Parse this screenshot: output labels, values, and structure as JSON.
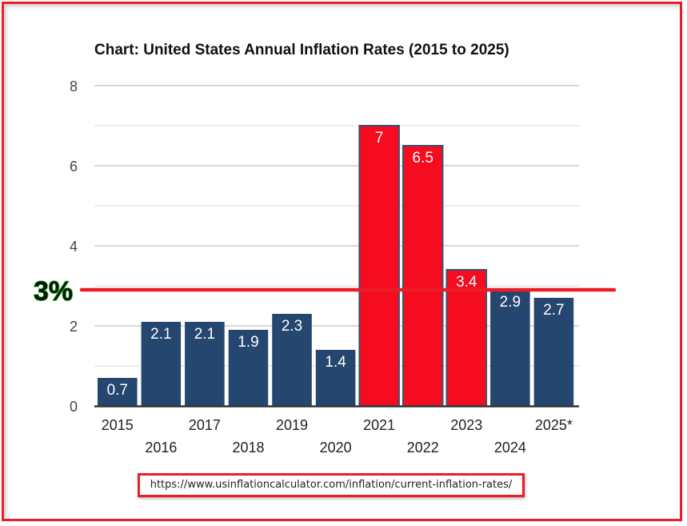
{
  "chart_data": {
    "type": "bar",
    "title": "Chart: United States Annual Inflation Rates (2015 to 2025)",
    "xlabel": "",
    "ylabel": "",
    "ylim": [
      0,
      8
    ],
    "yticks": [
      "0",
      "2",
      "4",
      "6",
      "8"
    ],
    "minor_gridlines": [
      1,
      3,
      5,
      7
    ],
    "grid": true,
    "categories": [
      "2015",
      "2016",
      "2017",
      "2018",
      "2019",
      "2020",
      "2021",
      "2022",
      "2023",
      "2024",
      "2025*"
    ],
    "values": [
      0.7,
      2.1,
      2.1,
      1.9,
      2.3,
      1.4,
      7,
      6.5,
      3.4,
      2.9,
      2.7
    ],
    "data_labels": [
      "0.7",
      "2.1",
      "2.1",
      "1.9",
      "2.3",
      "1.4",
      "7",
      "6.5",
      "3.4",
      "2.9",
      "2.7"
    ],
    "highlighted": [
      false,
      false,
      false,
      false,
      false,
      false,
      true,
      true,
      true,
      false,
      false
    ],
    "colors": {
      "default_bar": "#25466e",
      "highlight_bar": "#f50c1e",
      "highlight_border": "#3a5274",
      "reference_line": "#ee1c25",
      "reference_label_outline": "#18c21a",
      "axis": "#333333",
      "grid_major": "#cccccc",
      "grid_minor": "#e6e6e6"
    },
    "reference_line": {
      "value": 3,
      "label": "3%"
    },
    "legend": null
  },
  "source": {
    "url_text": "https://www.usinflationcalculator.com/inflation/current-inflation-rates/"
  }
}
